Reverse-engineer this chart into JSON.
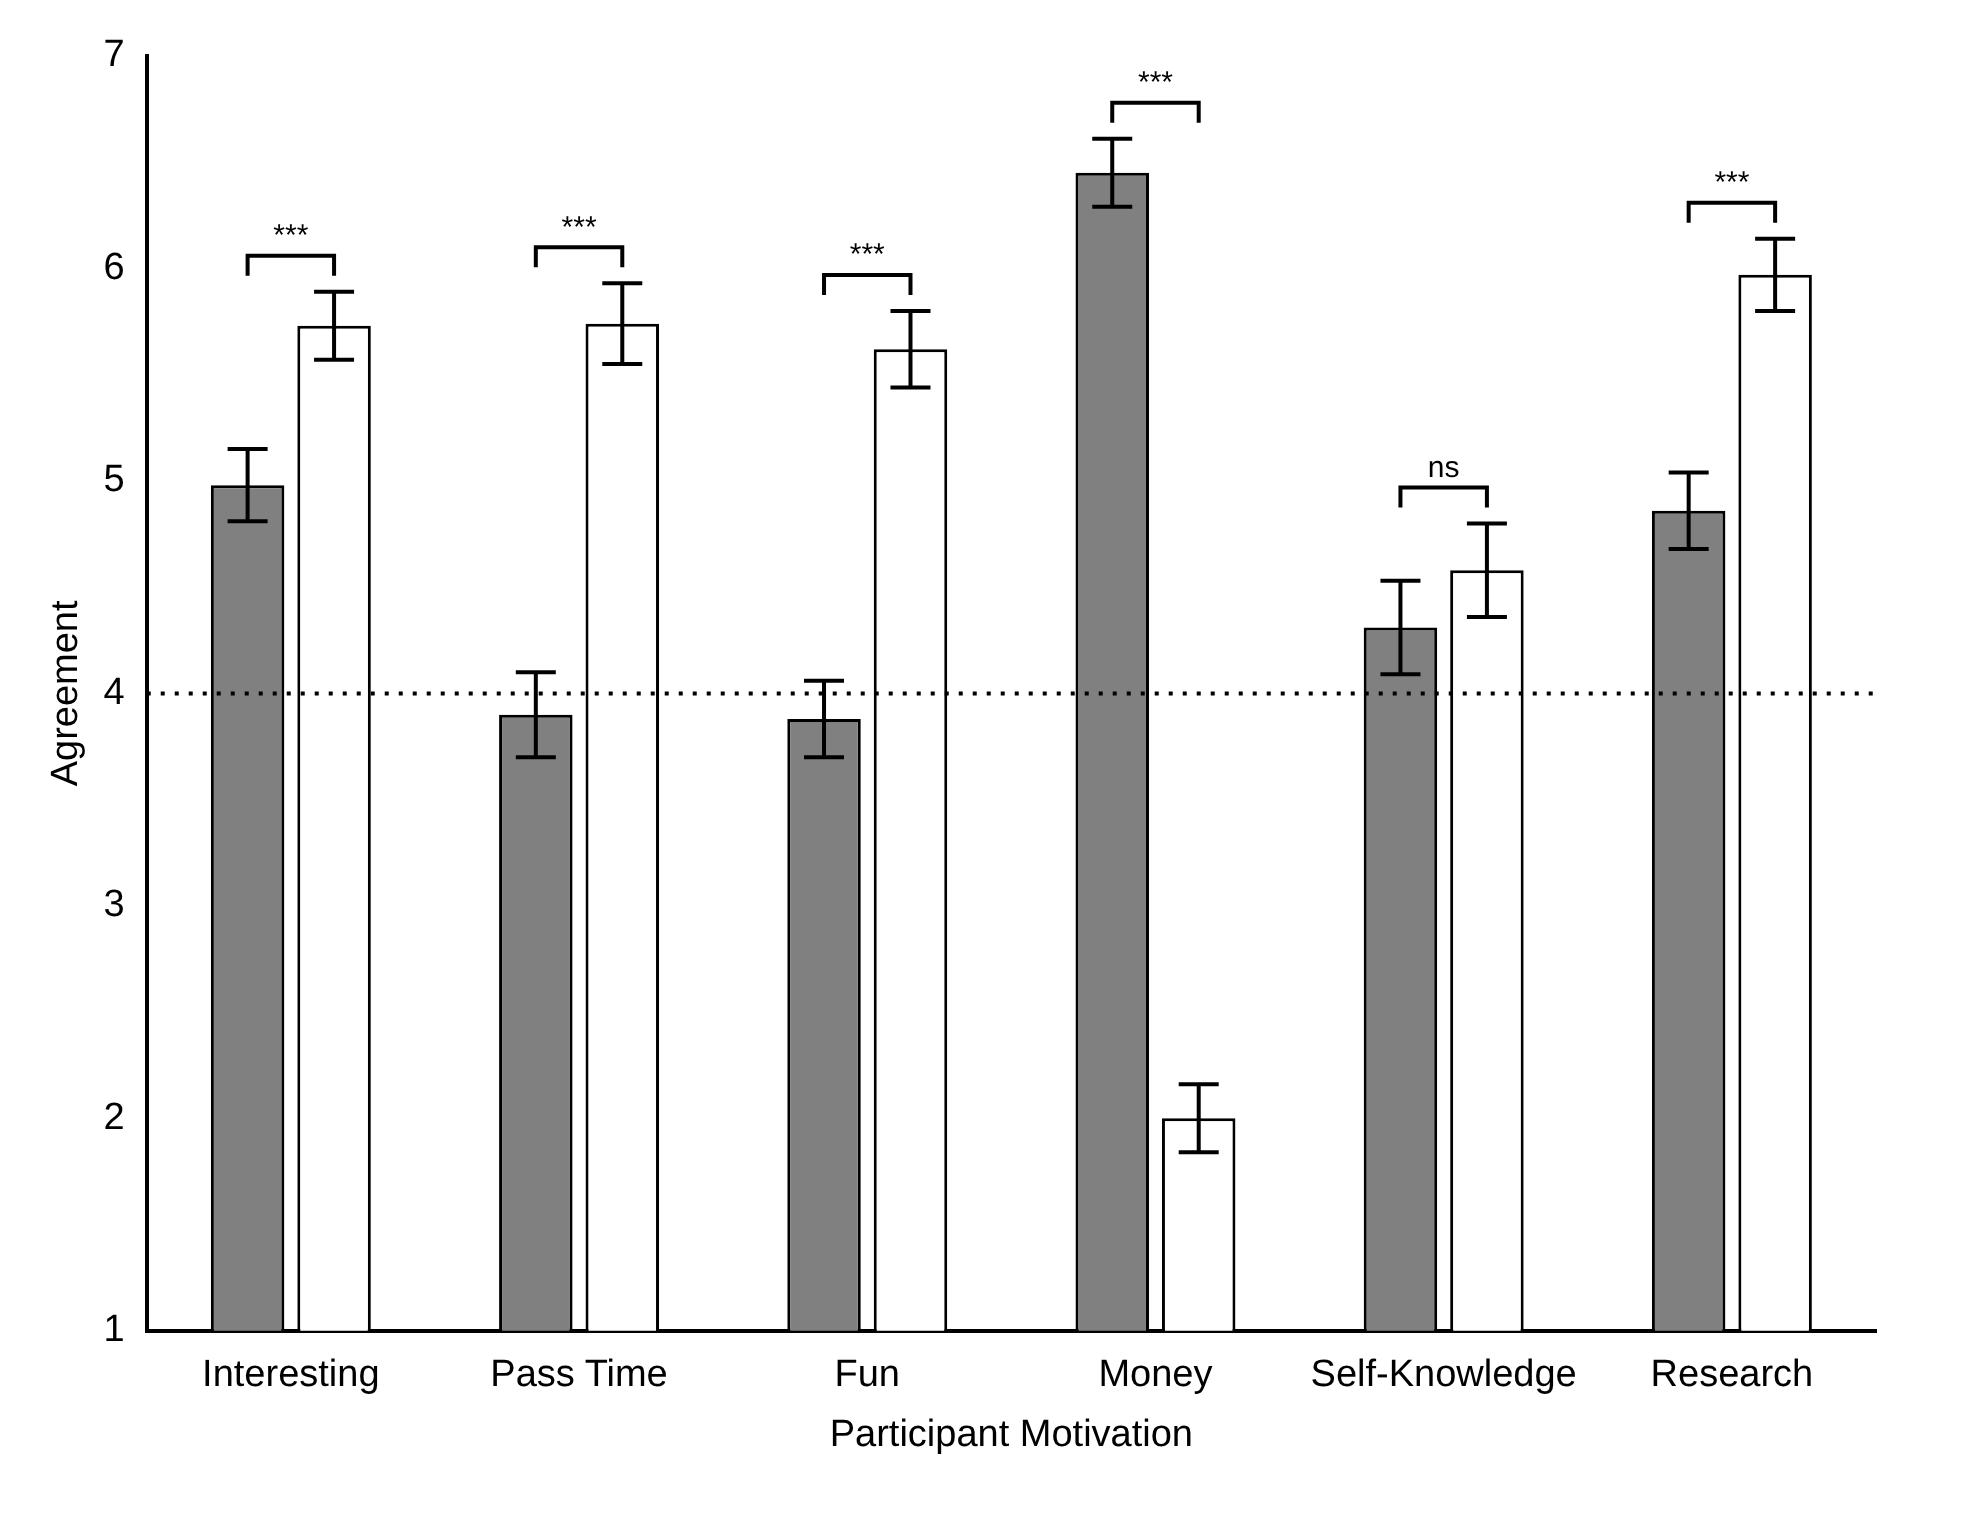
{
  "chart_data": {
    "type": "bar",
    "xlabel": "Participant Motivation",
    "ylabel": "Agreement",
    "categories": [
      "Interesting",
      "Pass Time",
      "Fun",
      "Money",
      "Self-Knowledge",
      "Research"
    ],
    "series": [
      {
        "color": "#808080",
        "values": [
          4.98,
          3.9,
          3.88,
          6.45,
          4.31,
          4.86
        ],
        "errors": [
          0.17,
          0.2,
          0.18,
          0.16,
          0.22,
          0.18
        ]
      },
      {
        "color": "#ffffff",
        "values": [
          5.73,
          5.74,
          5.62,
          2.0,
          4.58,
          5.97
        ],
        "errors": [
          0.16,
          0.19,
          0.18,
          0.16,
          0.22,
          0.17
        ]
      }
    ],
    "ylim": [
      1,
      7
    ],
    "yticks": [
      1,
      2,
      3,
      4,
      5,
      6,
      7
    ],
    "grid": false,
    "legend": false,
    "ref_lines": [
      {
        "axis": "y",
        "value": 4,
        "line_style": "dotted",
        "color": "#000000"
      }
    ],
    "annotations": [
      "***",
      "***",
      "***",
      "***",
      "ns",
      "***"
    ]
  }
}
